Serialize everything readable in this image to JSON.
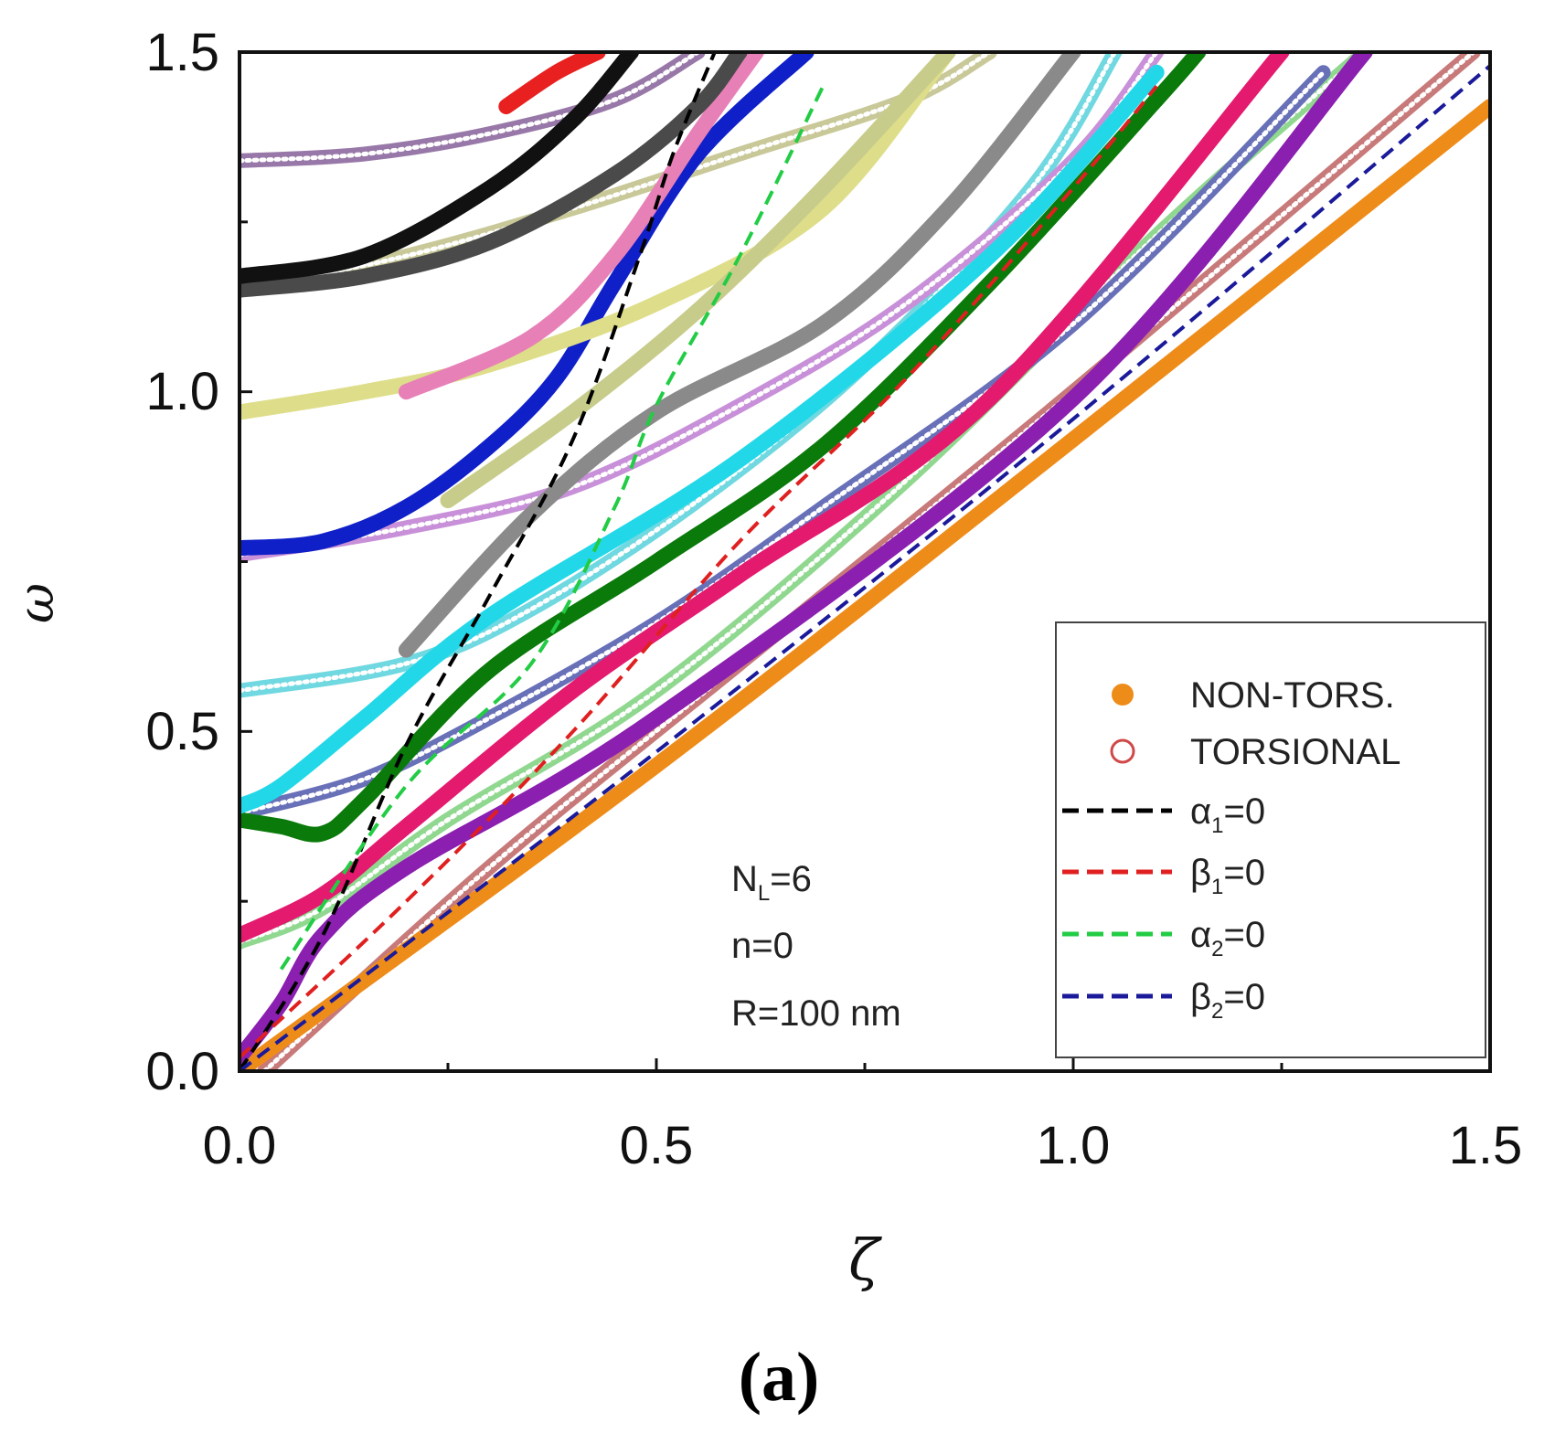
{
  "chart_data": {
    "type": "line",
    "title": "",
    "xlabel": "ζ",
    "ylabel": "ω",
    "xlim": [
      0,
      1.5
    ],
    "ylim": [
      0,
      1.5
    ],
    "x_ticks": [
      "0.0",
      "0.5",
      "1.0",
      "1.5"
    ],
    "y_ticks": [
      "0.0",
      "0.5",
      "1.0",
      "1.5"
    ],
    "grid": false,
    "legend_position": "bottom-right",
    "legend": [
      {
        "label": "NON-TORS.",
        "style": "filled-circle",
        "color": "#ee8c1a"
      },
      {
        "label": "TORSIONAL",
        "style": "open-circle",
        "color": "#d04848"
      },
      {
        "label_main": "α",
        "label_sub": "1",
        "label_tail": "=0",
        "style": "dashed",
        "color": "#000000"
      },
      {
        "label_main": "β",
        "label_sub": "1",
        "label_tail": "=0",
        "style": "dashed",
        "color": "#e02020"
      },
      {
        "label_main": "α",
        "label_sub": "2",
        "label_tail": "=0",
        "style": "dashed",
        "color": "#22cc44"
      },
      {
        "label_main": "β",
        "label_sub": "2",
        "label_tail": "=0",
        "style": "dashed",
        "color": "#1a1a9a"
      }
    ],
    "annotation": {
      "line1_main": "N",
      "line1_sub": "L",
      "line1_tail": "=6",
      "line2": "n=0",
      "line3": "R=100 nm"
    },
    "panel_label": "(a)",
    "series": [
      {
        "name": "non-tors orange",
        "kind": "solid",
        "color": "#ee8c1a",
        "points": [
          [
            0,
            0
          ],
          [
            0.5,
            0.45
          ],
          [
            1.0,
            0.93
          ],
          [
            1.5,
            1.42
          ]
        ]
      },
      {
        "name": "non-tors purple",
        "kind": "solid",
        "color": "#8a1fb0",
        "points": [
          [
            0,
            0.02
          ],
          [
            0.05,
            0.1
          ],
          [
            0.1,
            0.2
          ],
          [
            0.2,
            0.3
          ],
          [
            0.5,
            0.52
          ],
          [
            1.0,
            0.99
          ],
          [
            1.35,
            1.5
          ]
        ]
      },
      {
        "name": "non-tors magenta",
        "kind": "solid",
        "color": "#e31a6e",
        "points": [
          [
            0,
            0.2
          ],
          [
            0.1,
            0.26
          ],
          [
            0.2,
            0.36
          ],
          [
            0.4,
            0.56
          ],
          [
            0.6,
            0.73
          ],
          [
            0.9,
            0.99
          ],
          [
            1.25,
            1.5
          ]
        ]
      },
      {
        "name": "non-tors green",
        "kind": "solid",
        "color": "#0a7a0a",
        "points": [
          [
            0,
            0.37
          ],
          [
            0.05,
            0.36
          ],
          [
            0.1,
            0.35
          ],
          [
            0.15,
            0.4
          ],
          [
            0.3,
            0.59
          ],
          [
            0.5,
            0.75
          ],
          [
            0.7,
            0.92
          ],
          [
            0.9,
            1.16
          ],
          [
            1.1,
            1.43
          ],
          [
            1.15,
            1.5
          ]
        ]
      },
      {
        "name": "non-tors cyan",
        "kind": "solid",
        "color": "#22d8e8",
        "points": [
          [
            0,
            0.39
          ],
          [
            0.05,
            0.42
          ],
          [
            0.15,
            0.52
          ],
          [
            0.3,
            0.67
          ],
          [
            0.6,
            0.9
          ],
          [
            0.9,
            1.2
          ],
          [
            1.1,
            1.47
          ]
        ]
      },
      {
        "name": "non-tors gray",
        "kind": "solid",
        "color": "#8a8a8a",
        "points": [
          [
            0.2,
            0.62
          ],
          [
            0.35,
            0.82
          ],
          [
            0.5,
            0.97
          ],
          [
            0.7,
            1.1
          ],
          [
            0.85,
            1.27
          ],
          [
            1.0,
            1.5
          ]
        ]
      },
      {
        "name": "non-tors blue",
        "kind": "solid",
        "color": "#1020c8",
        "points": [
          [
            0,
            0.77
          ],
          [
            0.1,
            0.78
          ],
          [
            0.2,
            0.83
          ],
          [
            0.3,
            0.92
          ],
          [
            0.38,
            1.02
          ],
          [
            0.45,
            1.16
          ],
          [
            0.55,
            1.35
          ],
          [
            0.68,
            1.5
          ]
        ]
      },
      {
        "name": "non-tors yellow",
        "kind": "solid",
        "color": "#dede8a",
        "points": [
          [
            0,
            0.97
          ],
          [
            0.15,
            1.0
          ],
          [
            0.3,
            1.04
          ],
          [
            0.5,
            1.13
          ],
          [
            0.7,
            1.27
          ],
          [
            0.85,
            1.5
          ]
        ]
      },
      {
        "name": "non-tors olive",
        "kind": "solid",
        "color": "#c8cc8a",
        "points": [
          [
            0.25,
            0.84
          ],
          [
            0.4,
            0.97
          ],
          [
            0.55,
            1.12
          ],
          [
            0.7,
            1.3
          ],
          [
            0.85,
            1.5
          ]
        ]
      },
      {
        "name": "non-tors pink",
        "kind": "solid",
        "color": "#e880b8",
        "points": [
          [
            0.2,
            1.0
          ],
          [
            0.35,
            1.08
          ],
          [
            0.45,
            1.2
          ],
          [
            0.55,
            1.38
          ],
          [
            0.62,
            1.5
          ]
        ]
      },
      {
        "name": "non-tors dark gray",
        "kind": "solid",
        "color": "#4a4a4a",
        "points": [
          [
            0,
            1.15
          ],
          [
            0.15,
            1.17
          ],
          [
            0.3,
            1.22
          ],
          [
            0.45,
            1.32
          ],
          [
            0.55,
            1.42
          ],
          [
            0.6,
            1.5
          ]
        ]
      },
      {
        "name": "non-tors black",
        "kind": "solid",
        "color": "#111111",
        "points": [
          [
            0,
            1.17
          ],
          [
            0.15,
            1.2
          ],
          [
            0.3,
            1.3
          ],
          [
            0.4,
            1.4
          ],
          [
            0.47,
            1.5
          ]
        ]
      },
      {
        "name": "non-tors red",
        "kind": "solid",
        "color": "#e82020",
        "points": [
          [
            0.32,
            1.42
          ],
          [
            0.38,
            1.47
          ],
          [
            0.43,
            1.5
          ]
        ]
      },
      {
        "name": "tors brown",
        "kind": "open",
        "color": "#c87a7a",
        "points": [
          [
            0.03,
            0.0
          ],
          [
            0.3,
            0.3
          ],
          [
            0.6,
            0.6
          ],
          [
            1.0,
            1.0
          ],
          [
            1.48,
            1.5
          ]
        ]
      },
      {
        "name": "tors light green",
        "kind": "open",
        "color": "#90d890",
        "points": [
          [
            0,
            0.19
          ],
          [
            0.1,
            0.24
          ],
          [
            0.25,
            0.37
          ],
          [
            0.5,
            0.56
          ],
          [
            0.8,
            0.87
          ],
          [
            1.1,
            1.23
          ],
          [
            1.35,
            1.5
          ]
        ]
      },
      {
        "name": "tors slate",
        "kind": "open",
        "color": "#6870b8",
        "points": [
          [
            0,
            0.38
          ],
          [
            0.15,
            0.43
          ],
          [
            0.3,
            0.52
          ],
          [
            0.5,
            0.66
          ],
          [
            0.7,
            0.83
          ],
          [
            1.0,
            1.1
          ],
          [
            1.3,
            1.47
          ]
        ]
      },
      {
        "name": "tors light cyan",
        "kind": "open",
        "color": "#70d8e0",
        "points": [
          [
            0,
            0.56
          ],
          [
            0.2,
            0.6
          ],
          [
            0.35,
            0.68
          ],
          [
            0.55,
            0.84
          ],
          [
            0.75,
            1.04
          ],
          [
            0.95,
            1.3
          ],
          [
            1.05,
            1.5
          ]
        ]
      },
      {
        "name": "tors lavender",
        "kind": "open",
        "color": "#c890d8",
        "points": [
          [
            0,
            0.76
          ],
          [
            0.2,
            0.8
          ],
          [
            0.4,
            0.86
          ],
          [
            0.6,
            0.98
          ],
          [
            0.8,
            1.13
          ],
          [
            1.0,
            1.34
          ],
          [
            1.1,
            1.5
          ]
        ]
      },
      {
        "name": "tors tan",
        "kind": "open",
        "color": "#c8c898",
        "points": [
          [
            0,
            1.15
          ],
          [
            0.2,
            1.2
          ],
          [
            0.4,
            1.27
          ],
          [
            0.6,
            1.35
          ],
          [
            0.8,
            1.43
          ],
          [
            0.9,
            1.5
          ]
        ]
      },
      {
        "name": "tors mauve",
        "kind": "open",
        "color": "#9878a8",
        "points": [
          [
            0,
            1.34
          ],
          [
            0.15,
            1.35
          ],
          [
            0.3,
            1.38
          ],
          [
            0.45,
            1.43
          ],
          [
            0.55,
            1.5
          ]
        ]
      },
      {
        "name": "α1=0",
        "kind": "dashed",
        "color": "#000000",
        "points": [
          [
            0,
            0
          ],
          [
            0.1,
            0.2
          ],
          [
            0.2,
            0.48
          ],
          [
            0.3,
            0.7
          ],
          [
            0.4,
            0.93
          ],
          [
            0.48,
            1.2
          ],
          [
            0.52,
            1.35
          ],
          [
            0.57,
            1.5
          ]
        ]
      },
      {
        "name": "β1=0",
        "kind": "dashed",
        "color": "#e02020",
        "points": [
          [
            0,
            0.02
          ],
          [
            0.2,
            0.25
          ],
          [
            0.4,
            0.5
          ],
          [
            0.6,
            0.78
          ],
          [
            0.8,
            1.02
          ],
          [
            1.0,
            1.3
          ],
          [
            1.1,
            1.45
          ]
        ]
      },
      {
        "name": "α2=0",
        "kind": "dashed",
        "color": "#22cc44",
        "points": [
          [
            0.05,
            0.15
          ],
          [
            0.2,
            0.42
          ],
          [
            0.35,
            0.6
          ],
          [
            0.45,
            0.83
          ],
          [
            0.5,
            0.98
          ],
          [
            0.6,
            1.2
          ],
          [
            0.7,
            1.45
          ]
        ]
      },
      {
        "name": "β2=0",
        "kind": "dashed",
        "color": "#1a1a9a",
        "points": [
          [
            0,
            0
          ],
          [
            0.5,
            0.47
          ],
          [
            1.0,
            0.96
          ],
          [
            1.5,
            1.48
          ]
        ]
      }
    ]
  }
}
